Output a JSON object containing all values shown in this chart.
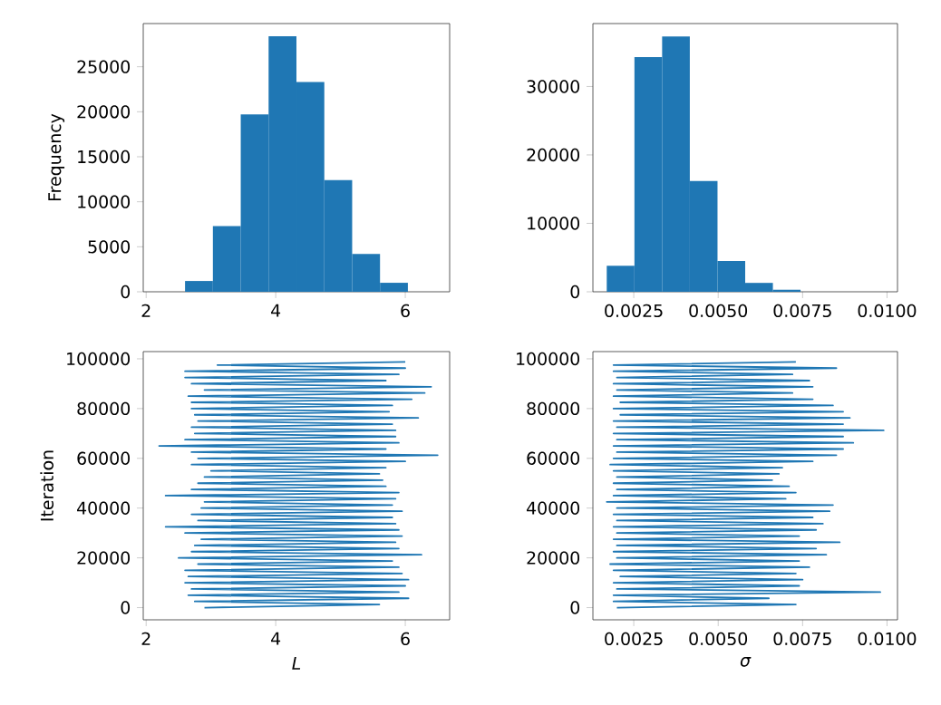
{
  "chart_data": [
    {
      "type": "histogram",
      "ylabel": "Frequency",
      "color": "#1f77b4",
      "bins": [
        2.17,
        2.6,
        3.03,
        3.46,
        3.89,
        4.32,
        4.75,
        5.18,
        5.61,
        6.04,
        6.47
      ],
      "values": [
        null,
        1200,
        7300,
        19700,
        28400,
        23300,
        12400,
        4200,
        1000,
        null
      ],
      "xlim": [
        1.955,
        6.685
      ],
      "ylim": [
        0,
        29800
      ],
      "xticks": [
        2,
        4,
        6
      ],
      "yticks": [
        0,
        5000,
        10000,
        15000,
        20000,
        25000
      ]
    },
    {
      "type": "histogram",
      "color": "#1f77b4",
      "bins": [
        0.0017,
        0.00252,
        0.00334,
        0.00416,
        0.00498,
        0.0058,
        0.00662,
        0.00744,
        0.00826,
        0.00908,
        0.0099
      ],
      "values": [
        3800,
        34300,
        37300,
        16200,
        4500,
        1300,
        300,
        null,
        null,
        null
      ],
      "xlim": [
        0.00129,
        0.01031
      ],
      "ylim": [
        0,
        39200
      ],
      "xticks": [
        {
          "value": 0.0025,
          "label": "0.0025"
        },
        {
          "value": 0.005,
          "label": "0.0050"
        },
        {
          "value": 0.0075,
          "label": "0.0075"
        },
        {
          "value": 0.01,
          "label": "0.0100"
        }
      ],
      "yticks": [
        0,
        10000,
        20000,
        30000
      ]
    },
    {
      "type": "line",
      "xlabel": "L",
      "ylabel": "Iteration",
      "marker": "none",
      "xlim": [
        1.955,
        6.685
      ],
      "ylim": [
        -4900,
        102900
      ],
      "xticks": [
        2,
        4,
        6
      ],
      "yticks": [
        0,
        20000,
        40000,
        60000,
        80000,
        100000
      ],
      "series": [
        {
          "color": "#1f77b4",
          "x": [
            2.9,
            5.6,
            2.75,
            6.05,
            2.65,
            5.9,
            2.7,
            6.0,
            2.6,
            6.05,
            2.65,
            5.95,
            2.6,
            5.9,
            2.8,
            5.8,
            2.5,
            6.25,
            2.7,
            5.9,
            2.75,
            5.85,
            2.85,
            5.95,
            2.6,
            5.9,
            2.3,
            5.85,
            2.8,
            5.8,
            2.7,
            5.95,
            2.85,
            5.8,
            2.9,
            5.85,
            2.3,
            5.9,
            2.7,
            5.7,
            2.8,
            5.65,
            2.9,
            5.6,
            3.0,
            5.7,
            2.7,
            6.0,
            2.8,
            6.5,
            2.7,
            5.7,
            2.2,
            5.9,
            2.6,
            5.85,
            2.75,
            5.85,
            2.7,
            5.8,
            2.8,
            6.2,
            2.75,
            5.75,
            2.7,
            5.8,
            2.7,
            6.1,
            2.65,
            6.3,
            2.9,
            6.4,
            2.7,
            5.7,
            2.6,
            5.9,
            2.6,
            6.0,
            3.1,
            6.0
          ],
          "values": [
            0,
            1250,
            2500,
            3750,
            5000,
            6250,
            7500,
            8750,
            10000,
            11250,
            12500,
            13750,
            15000,
            16250,
            17500,
            18750,
            20000,
            21250,
            22500,
            23750,
            25000,
            26250,
            27500,
            28750,
            30000,
            31250,
            32500,
            33750,
            35000,
            36250,
            37500,
            38750,
            40000,
            41250,
            42500,
            43750,
            45000,
            46250,
            47500,
            48750,
            50000,
            51250,
            52500,
            53750,
            55000,
            56250,
            57500,
            58750,
            60000,
            61250,
            62500,
            63750,
            65000,
            66250,
            67500,
            68750,
            70000,
            71250,
            72500,
            73750,
            75000,
            76250,
            77500,
            78750,
            80000,
            81250,
            82500,
            83750,
            85000,
            86250,
            87500,
            88750,
            90000,
            91250,
            92500,
            93750,
            95000,
            96250,
            97500,
            98750
          ]
        }
      ]
    },
    {
      "type": "line",
      "xlabel": "σ",
      "marker": "none",
      "xlim": [
        0.00129,
        0.01031
      ],
      "ylim": [
        -4900,
        102900
      ],
      "xticks": [
        {
          "value": 0.0025,
          "label": "0.0025"
        },
        {
          "value": 0.005,
          "label": "0.0050"
        },
        {
          "value": 0.0075,
          "label": "0.0075"
        },
        {
          "value": 0.01,
          "label": "0.0100"
        }
      ],
      "yticks": [
        0,
        20000,
        40000,
        60000,
        80000,
        100000
      ],
      "series": [
        {
          "color": "#1f77b4",
          "x": [
            0.002,
            0.0073,
            0.0019,
            0.0065,
            0.0019,
            0.0098,
            0.002,
            0.0074,
            0.0019,
            0.0075,
            0.0021,
            0.0073,
            0.0019,
            0.0077,
            0.0018,
            0.0074,
            0.002,
            0.0082,
            0.0019,
            0.0079,
            0.002,
            0.0086,
            0.0019,
            0.0074,
            0.002,
            0.0079,
            0.0019,
            0.0081,
            0.002,
            0.0078,
            0.0019,
            0.0083,
            0.002,
            0.0084,
            0.0017,
            0.007,
            0.0019,
            0.0073,
            0.002,
            0.0071,
            0.0019,
            0.0066,
            0.002,
            0.0068,
            0.0019,
            0.0069,
            0.0018,
            0.0078,
            0.0019,
            0.0085,
            0.002,
            0.0087,
            0.0019,
            0.009,
            0.002,
            0.0087,
            0.0019,
            0.0099,
            0.002,
            0.0087,
            0.0019,
            0.0089,
            0.0021,
            0.0087,
            0.0019,
            0.0084,
            0.0021,
            0.0078,
            0.0019,
            0.0072,
            0.002,
            0.0078,
            0.0019,
            0.0077,
            0.002,
            0.0072,
            0.0019,
            0.0085,
            0.0019,
            0.0073
          ],
          "values": [
            0,
            1250,
            2500,
            3750,
            5000,
            6250,
            7500,
            8750,
            10000,
            11250,
            12500,
            13750,
            15000,
            16250,
            17500,
            18750,
            20000,
            21250,
            22500,
            23750,
            25000,
            26250,
            27500,
            28750,
            30000,
            31250,
            32500,
            33750,
            35000,
            36250,
            37500,
            38750,
            40000,
            41250,
            42500,
            43750,
            45000,
            46250,
            47500,
            48750,
            50000,
            51250,
            52500,
            53750,
            55000,
            56250,
            57500,
            58750,
            60000,
            61250,
            62500,
            63750,
            65000,
            66250,
            67500,
            68750,
            70000,
            71250,
            72500,
            73750,
            75000,
            76250,
            77500,
            78750,
            80000,
            81250,
            82500,
            83750,
            85000,
            86250,
            87500,
            88750,
            90000,
            91250,
            92500,
            93750,
            95000,
            96250,
            97500,
            98750
          ]
        }
      ]
    }
  ]
}
